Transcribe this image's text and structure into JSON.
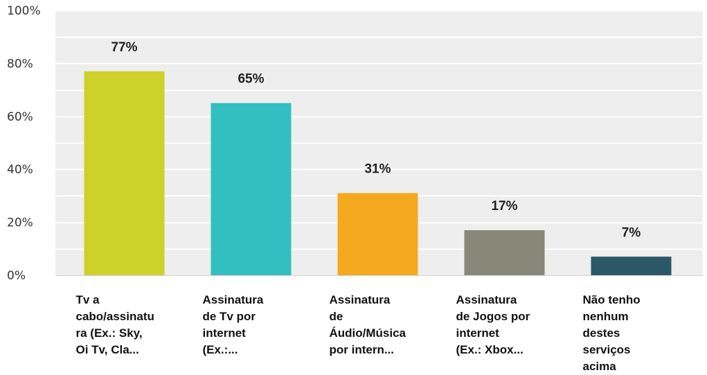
{
  "chart_data": {
    "type": "bar",
    "categories": [
      [
        "Tv a",
        "cabo/assinatu",
        "ra (Ex.: Sky,",
        "Oi Tv, Cla..."
      ],
      [
        "Assinatura",
        "de Tv por",
        "internet",
        "(Ex.:..."
      ],
      [
        "Assinatura",
        "de",
        "Áudio/Música",
        "por intern..."
      ],
      [
        "Assinatura",
        "de Jogos por",
        "internet",
        "(Ex.: Xbox..."
      ],
      [
        "Não tenho",
        "nenhum",
        "destes",
        "serviços",
        "acima"
      ]
    ],
    "values": [
      77,
      65,
      31,
      17,
      7
    ],
    "value_labels": [
      "77%",
      "65%",
      "31%",
      "17%",
      "7%"
    ],
    "colors": [
      "#cdd12a",
      "#33bfc1",
      "#f5a91f",
      "#878878",
      "#2b5866"
    ],
    "ylim": [
      0,
      100
    ],
    "yticks": [
      0,
      20,
      40,
      60,
      80,
      100
    ],
    "ytick_labels": [
      "0%",
      "20%",
      "40%",
      "60%",
      "80%",
      "100%"
    ],
    "minor_gridlines": [
      10,
      30,
      50,
      70,
      90
    ],
    "grid": true,
    "plot_background": "#eeeeee",
    "gridline_color": "#ffffff"
  }
}
